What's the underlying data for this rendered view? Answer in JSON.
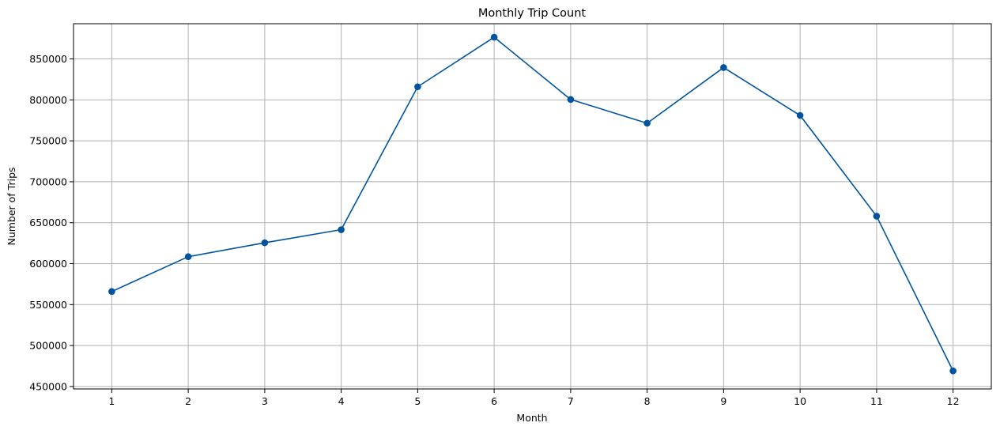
{
  "chart_data": {
    "type": "line",
    "title": "Monthly Trip Count",
    "xlabel": "Month",
    "ylabel": "Number of Trips",
    "x": [
      1,
      2,
      3,
      4,
      5,
      6,
      7,
      8,
      9,
      10,
      11,
      12
    ],
    "x_tick_labels": [
      "1",
      "2",
      "3",
      "4",
      "5",
      "6",
      "7",
      "8",
      "9",
      "10",
      "11",
      "12"
    ],
    "series": [
      {
        "values": [
          566000,
          608500,
          625500,
          641500,
          816000,
          876500,
          800500,
          771500,
          839500,
          781000,
          658000,
          469000
        ],
        "color": "#00549f",
        "marker": "circle"
      }
    ],
    "xlim": [
      0.5,
      12.5
    ],
    "ylim": [
      447000,
      893000
    ],
    "y_ticks": [
      450000,
      500000,
      550000,
      600000,
      650000,
      700000,
      750000,
      800000,
      850000
    ],
    "y_tick_labels": [
      "450000",
      "500000",
      "550000",
      "600000",
      "650000",
      "700000",
      "750000",
      "800000",
      "850000"
    ],
    "grid": true,
    "grid_color": "#b0b0b0",
    "legend": false
  }
}
